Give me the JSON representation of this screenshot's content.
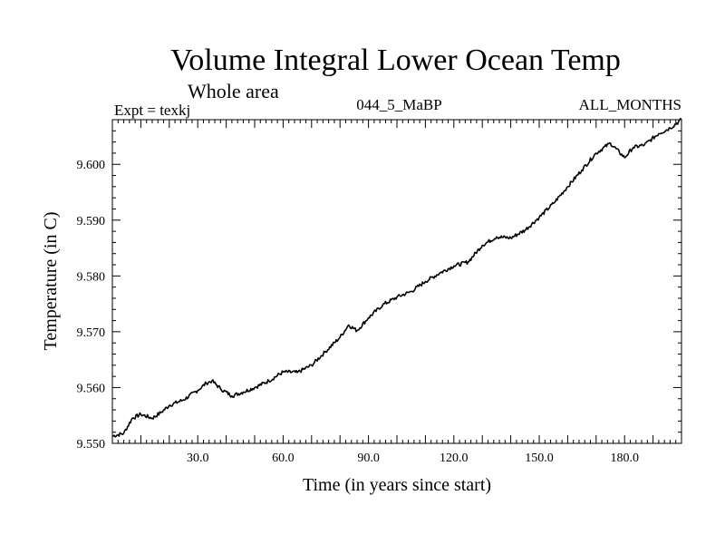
{
  "chart_data": {
    "type": "line",
    "title": "Volume Integral Lower Ocean Temp",
    "subtitle": "Whole area",
    "annotations": {
      "left": "Expt = texkj",
      "center": "044_5_MaBP",
      "right": "ALL_MONTHS"
    },
    "xlabel": "Time (in years since start)",
    "ylabel": "Temperature (in C)",
    "xlim": [
      0,
      200
    ],
    "ylim": [
      9.55,
      9.608
    ],
    "x_ticks": [
      30,
      60,
      90,
      120,
      150,
      180
    ],
    "x_tick_labels": [
      "30.0",
      "60.0",
      "90.0",
      "120.0",
      "150.0",
      "180.0"
    ],
    "y_ticks": [
      9.55,
      9.56,
      9.57,
      9.58,
      9.59,
      9.6
    ],
    "y_tick_labels": [
      "9.550",
      "9.560",
      "9.570",
      "9.580",
      "9.590",
      "9.600"
    ],
    "grid": false,
    "series": [
      {
        "name": "Volume Integral Lower Ocean Temp",
        "x": [
          0,
          4,
          7,
          10,
          14,
          17,
          20,
          25,
          30,
          33,
          35,
          38,
          42,
          46,
          50,
          55,
          60,
          65,
          70,
          75,
          80,
          83,
          86,
          90,
          95,
          100,
          105,
          110,
          115,
          120,
          125,
          130,
          135,
          140,
          145,
          150,
          155,
          160,
          165,
          170,
          175,
          180,
          183,
          187,
          192,
          196,
          200
        ],
        "values": [
          9.5513,
          9.5518,
          9.5545,
          9.5552,
          9.5545,
          9.5555,
          9.5568,
          9.5578,
          9.5595,
          9.5608,
          9.5612,
          9.5598,
          9.5585,
          9.5592,
          9.56,
          9.5612,
          9.5628,
          9.5627,
          9.564,
          9.5665,
          9.569,
          9.5712,
          9.5702,
          9.5725,
          9.5748,
          9.5762,
          9.5772,
          9.579,
          9.5805,
          9.5818,
          9.5825,
          9.5855,
          9.587,
          9.5868,
          9.5882,
          9.5905,
          9.593,
          9.596,
          9.599,
          9.602,
          9.6038,
          9.6012,
          9.603,
          9.6035,
          9.6055,
          9.6065,
          9.608
        ]
      }
    ]
  }
}
